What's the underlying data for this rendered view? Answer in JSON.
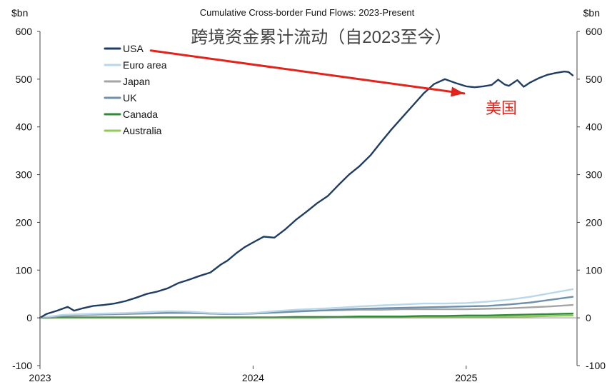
{
  "chart_data": {
    "type": "line",
    "title": "Cumulative Cross-border Fund Flows: 2023-Present",
    "subtitle": "跨境资金累计流动（自2023至今）",
    "left_unit": "$bn",
    "right_unit": "$bn",
    "ylim": [
      -100,
      600
    ],
    "yticks": [
      -100,
      0,
      100,
      200,
      300,
      400,
      500,
      600
    ],
    "xlim": [
      2023.0,
      2025.52
    ],
    "xticks": [
      {
        "value": 2023.0,
        "label": "2023"
      },
      {
        "value": 2024.0,
        "label": "2024"
      },
      {
        "value": 2025.0,
        "label": "2025"
      }
    ],
    "legend_position": "top-left",
    "series": [
      {
        "name": "USA",
        "color": "#1f3d62",
        "width": 2.4,
        "x": [
          2023.0,
          2023.03,
          2023.08,
          2023.13,
          2023.16,
          2023.2,
          2023.25,
          2023.3,
          2023.35,
          2023.4,
          2023.45,
          2023.5,
          2023.55,
          2023.6,
          2023.65,
          2023.7,
          2023.75,
          2023.8,
          2023.85,
          2023.88,
          2023.92,
          2023.96,
          2024.0,
          2024.05,
          2024.1,
          2024.15,
          2024.2,
          2024.25,
          2024.3,
          2024.35,
          2024.4,
          2024.45,
          2024.5,
          2024.55,
          2024.6,
          2024.65,
          2024.7,
          2024.75,
          2024.8,
          2024.85,
          2024.9,
          2024.95,
          2025.0,
          2025.04,
          2025.08,
          2025.12,
          2025.15,
          2025.18,
          2025.2,
          2025.24,
          2025.27,
          2025.3,
          2025.34,
          2025.38,
          2025.42,
          2025.46,
          2025.48,
          2025.5
        ],
        "values": [
          0,
          8,
          15,
          23,
          15,
          20,
          25,
          27,
          30,
          35,
          42,
          50,
          55,
          62,
          73,
          80,
          88,
          95,
          112,
          120,
          135,
          148,
          158,
          170,
          168,
          185,
          205,
          222,
          240,
          255,
          278,
          300,
          318,
          340,
          368,
          395,
          420,
          445,
          470,
          490,
          500,
          492,
          485,
          483,
          485,
          488,
          499,
          489,
          486,
          498,
          484,
          493,
          502,
          509,
          513,
          516,
          515,
          508
        ]
      },
      {
        "name": "Euro area",
        "color": "#b8d8ea",
        "width": 2.4,
        "x": [
          2023.0,
          2023.1,
          2023.2,
          2023.3,
          2023.4,
          2023.5,
          2023.6,
          2023.7,
          2023.8,
          2023.9,
          2024.0,
          2024.1,
          2024.2,
          2024.3,
          2024.4,
          2024.5,
          2024.6,
          2024.7,
          2024.8,
          2024.9,
          2025.0,
          2025.1,
          2025.2,
          2025.3,
          2025.4,
          2025.5
        ],
        "values": [
          0,
          6,
          8,
          9,
          10,
          12,
          14,
          13,
          10,
          9,
          10,
          14,
          17,
          19,
          21,
          24,
          26,
          28,
          30,
          30,
          31,
          34,
          38,
          44,
          52,
          60
        ]
      },
      {
        "name": "Japan",
        "color": "#a4a4a4",
        "width": 2.4,
        "x": [
          2023.0,
          2023.1,
          2023.2,
          2023.3,
          2023.4,
          2023.5,
          2023.6,
          2023.7,
          2023.8,
          2023.9,
          2024.0,
          2024.1,
          2024.2,
          2024.3,
          2024.4,
          2024.5,
          2024.6,
          2024.7,
          2024.8,
          2024.9,
          2025.0,
          2025.1,
          2025.2,
          2025.3,
          2025.4,
          2025.5
        ],
        "values": [
          0,
          4,
          6,
          7,
          8,
          9,
          10,
          10,
          9,
          8,
          10,
          12,
          14,
          15,
          16,
          17,
          17,
          18,
          18,
          18,
          18,
          19,
          20,
          22,
          24,
          27
        ]
      },
      {
        "name": "UK",
        "color": "#6f8fab",
        "width": 2.4,
        "x": [
          2023.0,
          2023.1,
          2023.2,
          2023.3,
          2023.4,
          2023.5,
          2023.6,
          2023.7,
          2023.8,
          2023.9,
          2024.0,
          2024.1,
          2024.2,
          2024.3,
          2024.4,
          2024.5,
          2024.6,
          2024.7,
          2024.8,
          2024.9,
          2025.0,
          2025.1,
          2025.2,
          2025.3,
          2025.4,
          2025.5
        ],
        "values": [
          0,
          5,
          7,
          8,
          9,
          10,
          11,
          11,
          9,
          8,
          9,
          11,
          13,
          15,
          17,
          19,
          20,
          21,
          22,
          23,
          24,
          25,
          28,
          32,
          38,
          44
        ]
      },
      {
        "name": "Canada",
        "color": "#2e8b3a",
        "width": 2.4,
        "x": [
          2023.0,
          2023.1,
          2023.2,
          2023.3,
          2023.4,
          2023.5,
          2023.6,
          2023.7,
          2023.8,
          2023.9,
          2024.0,
          2024.1,
          2024.2,
          2024.3,
          2024.4,
          2024.5,
          2024.6,
          2024.7,
          2024.8,
          2024.9,
          2025.0,
          2025.1,
          2025.2,
          2025.3,
          2025.4,
          2025.5
        ],
        "values": [
          0,
          1,
          1,
          1,
          1,
          1,
          1,
          1,
          1,
          1,
          1,
          1,
          2,
          2,
          2,
          3,
          3,
          3,
          4,
          4,
          5,
          5,
          6,
          7,
          8,
          9
        ]
      },
      {
        "name": "Australia",
        "color": "#93c956",
        "width": 2.4,
        "x": [
          2023.0,
          2023.1,
          2023.2,
          2023.3,
          2023.4,
          2023.5,
          2023.6,
          2023.7,
          2023.8,
          2023.9,
          2024.0,
          2024.1,
          2024.2,
          2024.3,
          2024.4,
          2024.5,
          2024.6,
          2024.7,
          2024.8,
          2024.9,
          2025.0,
          2025.1,
          2025.2,
          2025.3,
          2025.4,
          2025.5
        ],
        "values": [
          0,
          0,
          0,
          0,
          0,
          0,
          0,
          0,
          0,
          0,
          0,
          0,
          0,
          0,
          1,
          1,
          1,
          1,
          1,
          1,
          2,
          2,
          2,
          3,
          4,
          5
        ]
      }
    ],
    "annotation": {
      "label": "美国",
      "color": "#e0241b",
      "start": {
        "x": 2023.52,
        "y": 560
      },
      "end": {
        "x": 2024.99,
        "y": 470
      }
    }
  }
}
